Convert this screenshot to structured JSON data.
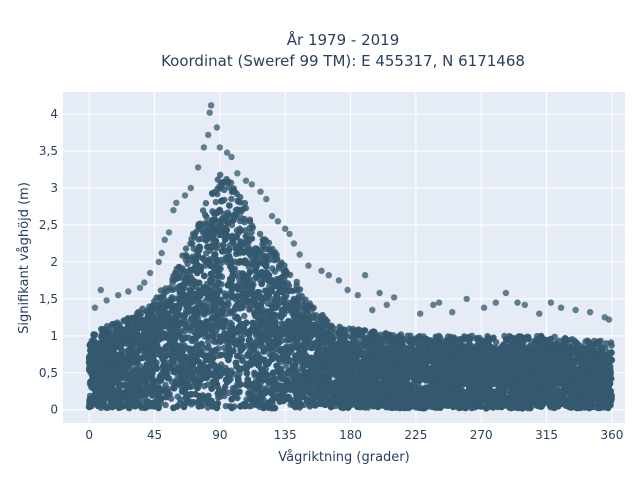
{
  "chart_data": {
    "type": "scatter",
    "title": "År 1979 - 2019",
    "subtitle": "Koordinat (Sweref 99 TM): E 455317, N 6171468",
    "xlabel": "Vågriktning (grader)",
    "ylabel": "Signifikant våghöjd (m)",
    "xlim": [
      -18,
      369
    ],
    "ylim": [
      -0.18,
      4.3
    ],
    "x_ticks": [
      0,
      45,
      90,
      135,
      180,
      225,
      270,
      315,
      360
    ],
    "x_tick_labels": [
      "0",
      "45",
      "90",
      "135",
      "180",
      "225",
      "270",
      "315",
      "360"
    ],
    "y_ticks": [
      0,
      0.5,
      1,
      1.5,
      2,
      2.5,
      3,
      3.5,
      4
    ],
    "y_tick_labels": [
      "0",
      "0,5",
      "1",
      "1,5",
      "2",
      "2,5",
      "3",
      "3,5",
      "4"
    ],
    "grid": true,
    "marker_color": "#34586e",
    "plot_background": "#e5ecf6",
    "grid_color": "#ffffff",
    "envelope": {
      "x": [
        0,
        15,
        30,
        45,
        60,
        75,
        85,
        90,
        100,
        110,
        120,
        135,
        150,
        165,
        180,
        200,
        225,
        250,
        270,
        290,
        315,
        340,
        360
      ],
      "y_max": [
        1.05,
        1.15,
        1.3,
        1.5,
        1.9,
        2.55,
        3.05,
        3.2,
        3.05,
        2.7,
        2.35,
        2.0,
        1.5,
        1.2,
        1.1,
        1.05,
        1.0,
        1.0,
        1.0,
        1.0,
        1.0,
        0.95,
        0.92
      ],
      "y_min": 0.02
    },
    "outliers": [
      {
        "x": 84,
        "y": 4.12
      },
      {
        "x": 83,
        "y": 4.02
      },
      {
        "x": 88,
        "y": 3.82
      },
      {
        "x": 82,
        "y": 3.72
      },
      {
        "x": 90,
        "y": 3.55
      },
      {
        "x": 79,
        "y": 3.55
      },
      {
        "x": 95,
        "y": 3.48
      },
      {
        "x": 98,
        "y": 3.42
      },
      {
        "x": 75,
        "y": 3.28
      },
      {
        "x": 102,
        "y": 3.2
      },
      {
        "x": 108,
        "y": 3.1
      },
      {
        "x": 112,
        "y": 3.05
      },
      {
        "x": 70,
        "y": 3.0
      },
      {
        "x": 66,
        "y": 2.9
      },
      {
        "x": 118,
        "y": 2.95
      },
      {
        "x": 122,
        "y": 2.85
      },
      {
        "x": 60,
        "y": 2.8
      },
      {
        "x": 58,
        "y": 2.7
      },
      {
        "x": 126,
        "y": 2.62
      },
      {
        "x": 130,
        "y": 2.55
      },
      {
        "x": 135,
        "y": 2.45
      },
      {
        "x": 138,
        "y": 2.38
      },
      {
        "x": 55,
        "y": 2.4
      },
      {
        "x": 52,
        "y": 2.3
      },
      {
        "x": 141,
        "y": 2.25
      },
      {
        "x": 145,
        "y": 2.1
      },
      {
        "x": 50,
        "y": 2.12
      },
      {
        "x": 48,
        "y": 2.0
      },
      {
        "x": 151,
        "y": 1.95
      },
      {
        "x": 160,
        "y": 1.88
      },
      {
        "x": 165,
        "y": 1.82
      },
      {
        "x": 172,
        "y": 1.75
      },
      {
        "x": 190,
        "y": 1.82
      },
      {
        "x": 178,
        "y": 1.62
      },
      {
        "x": 185,
        "y": 1.55
      },
      {
        "x": 200,
        "y": 1.58
      },
      {
        "x": 210,
        "y": 1.52
      },
      {
        "x": 42,
        "y": 1.85
      },
      {
        "x": 38,
        "y": 1.72
      },
      {
        "x": 35,
        "y": 1.65
      },
      {
        "x": 27,
        "y": 1.6
      },
      {
        "x": 20,
        "y": 1.55
      },
      {
        "x": 8,
        "y": 1.62
      },
      {
        "x": 12,
        "y": 1.48
      },
      {
        "x": 4,
        "y": 1.38
      },
      {
        "x": 237,
        "y": 1.42
      },
      {
        "x": 241,
        "y": 1.45
      },
      {
        "x": 250,
        "y": 1.32
      },
      {
        "x": 260,
        "y": 1.5
      },
      {
        "x": 272,
        "y": 1.38
      },
      {
        "x": 280,
        "y": 1.45
      },
      {
        "x": 287,
        "y": 1.58
      },
      {
        "x": 295,
        "y": 1.45
      },
      {
        "x": 300,
        "y": 1.42
      },
      {
        "x": 318,
        "y": 1.45
      },
      {
        "x": 325,
        "y": 1.38
      },
      {
        "x": 335,
        "y": 1.35
      },
      {
        "x": 345,
        "y": 1.32
      },
      {
        "x": 355,
        "y": 1.25
      },
      {
        "x": 358,
        "y": 1.22
      },
      {
        "x": 310,
        "y": 1.3
      },
      {
        "x": 228,
        "y": 1.3
      },
      {
        "x": 205,
        "y": 1.42
      },
      {
        "x": 195,
        "y": 1.35
      }
    ]
  }
}
